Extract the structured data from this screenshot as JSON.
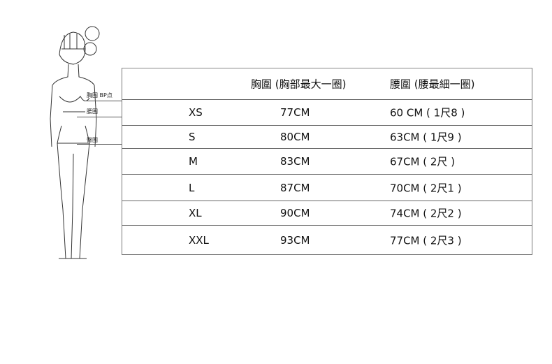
{
  "figure_labels": {
    "chest": "胸围 BP点",
    "waist": "腰围",
    "hip": "臀围"
  },
  "table": {
    "headers": [
      "",
      "胸圍 (胸部最大一圈)",
      "腰圍 (腰最細一圈)"
    ],
    "rows": [
      {
        "size": "XS",
        "chest": "77CM",
        "waist": "60 CM ( 1尺8 )"
      },
      {
        "size": "S",
        "chest": "80CM",
        "waist": "63CM ( 1尺9 )"
      },
      {
        "size": "M",
        "chest": "83CM",
        "waist": "67CM ( 2尺 )"
      },
      {
        "size": "L",
        "chest": "87CM",
        "waist": "70CM ( 2尺1 )"
      },
      {
        "size": "XL",
        "chest": "90CM",
        "waist": "74CM ( 2尺2 )"
      },
      {
        "size": "XXL",
        "chest": "93CM",
        "waist": "77CM ( 2尺3 )"
      }
    ]
  }
}
